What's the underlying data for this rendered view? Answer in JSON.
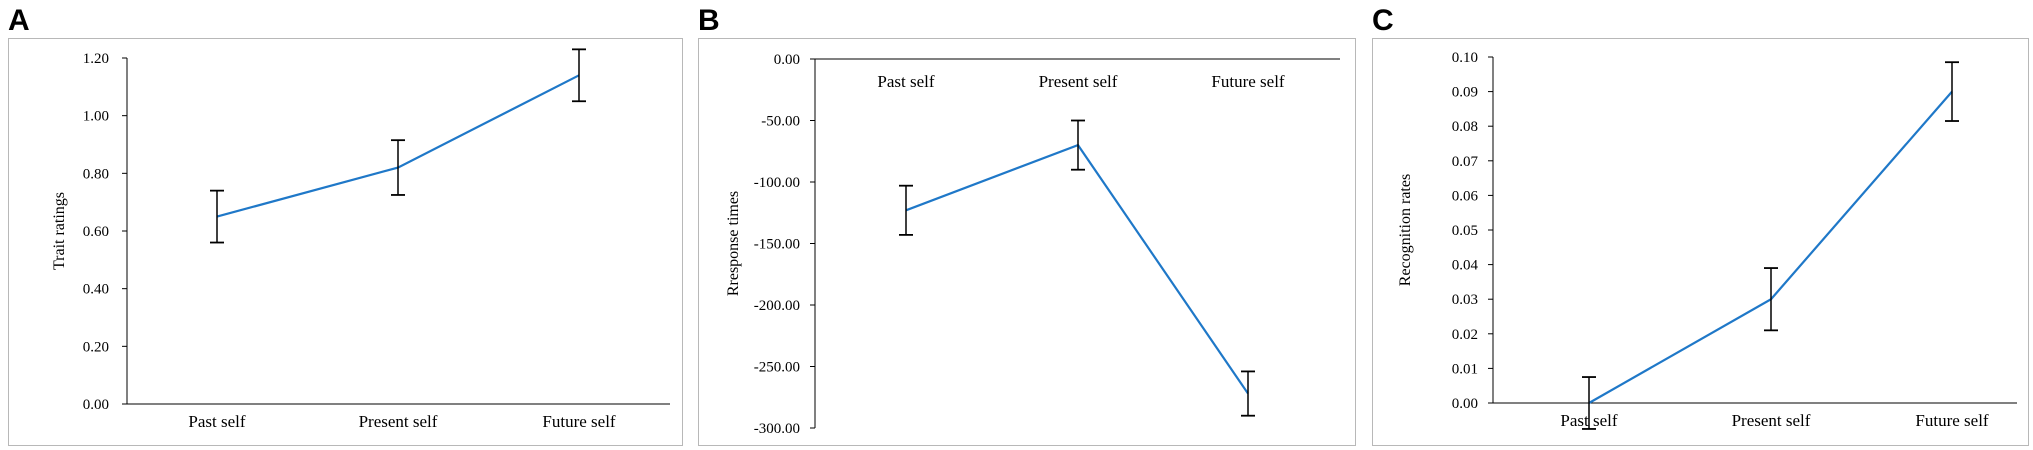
{
  "chart_data": [
    {
      "panel": "A",
      "type": "line",
      "categories": [
        "Past self",
        "Present self",
        "Future self"
      ],
      "values": [
        0.65,
        0.82,
        1.14
      ],
      "error": [
        0.09,
        0.095,
        0.09
      ],
      "ylabel": "Trait ratings",
      "ylim": [
        0,
        1.2
      ],
      "yticks": [
        "0.00",
        "0.20",
        "0.40",
        "0.60",
        "0.80",
        "1.00",
        "1.20"
      ],
      "category_position": "bottom",
      "grid": false,
      "line_color": "#1f78c8"
    },
    {
      "panel": "B",
      "type": "line",
      "categories": [
        "Past self",
        "Present self",
        "Future self"
      ],
      "values": [
        -123,
        -70,
        -272
      ],
      "error": [
        20,
        20,
        18
      ],
      "ylabel": "Rresponse times",
      "ylim": [
        -300,
        0
      ],
      "yticks": [
        "0.00",
        "-50.00",
        "-100.00",
        "-150.00",
        "-200.00",
        "-250.00",
        "-300.00"
      ],
      "category_position": "top",
      "grid": false,
      "line_color": "#1f78c8"
    },
    {
      "panel": "C",
      "type": "line",
      "categories": [
        "Past self",
        "Present self",
        "Future self"
      ],
      "values": [
        0.0,
        0.03,
        0.09
      ],
      "error": [
        0.0075,
        0.009,
        0.0085
      ],
      "ylabel": "Recognition rates",
      "ylim": [
        0,
        0.1
      ],
      "yticks": [
        "0.00",
        "0.01",
        "0.02",
        "0.03",
        "0.04",
        "0.05",
        "0.06",
        "0.07",
        "0.08",
        "0.09",
        "0.10"
      ],
      "category_position": "bottom",
      "grid": false,
      "line_color": "#1f78c8"
    }
  ]
}
